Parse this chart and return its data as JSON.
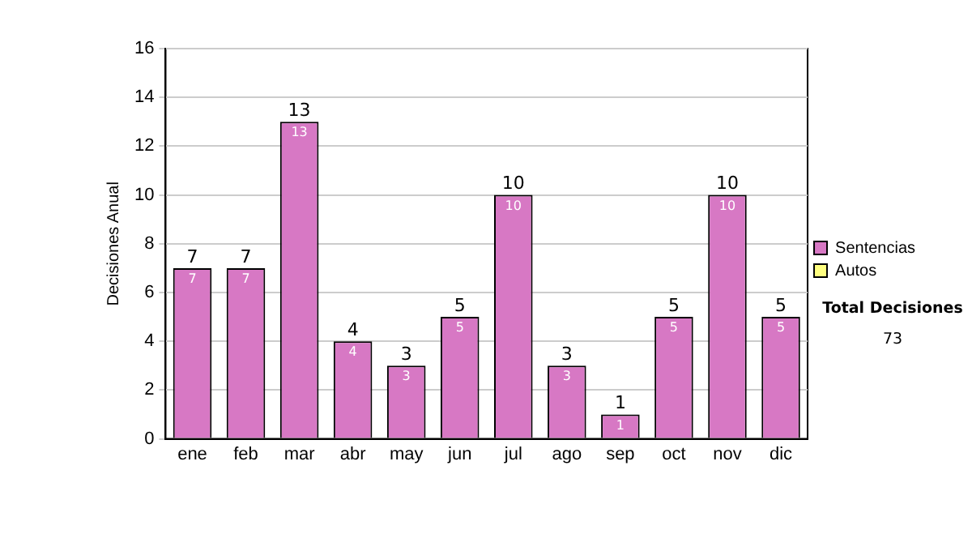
{
  "chart_data": {
    "type": "bar",
    "ylabel": "Decisiones Anual",
    "categories": [
      "ene",
      "feb",
      "mar",
      "abr",
      "may",
      "jun",
      "jul",
      "ago",
      "sep",
      "oct",
      "nov",
      "dic"
    ],
    "stacked": true,
    "series": [
      {
        "name": "Sentencias",
        "color": "#d778c4",
        "values": [
          7,
          7,
          13,
          4,
          3,
          5,
          10,
          3,
          1,
          5,
          10,
          5
        ],
        "value_labels": [
          "7",
          "7",
          "13",
          "4",
          "3",
          "5",
          "10",
          "3",
          "1",
          "5",
          "10",
          "5"
        ]
      },
      {
        "name": "Autos",
        "color": "#ffff80",
        "values": [
          0,
          0,
          0,
          0,
          0,
          0,
          0,
          0,
          0,
          0,
          0,
          0
        ]
      }
    ],
    "totals": [
      "7",
      "7",
      "13",
      "4",
      "3",
      "5",
      "10",
      "3",
      "1",
      "5",
      "10",
      "5"
    ],
    "ylim": [
      0,
      16
    ],
    "yticks": [
      0,
      2,
      4,
      6,
      8,
      10,
      12,
      14,
      16
    ],
    "grid": "y",
    "legend": "right",
    "annotations": [
      "Total Decisiones",
      "73"
    ]
  }
}
